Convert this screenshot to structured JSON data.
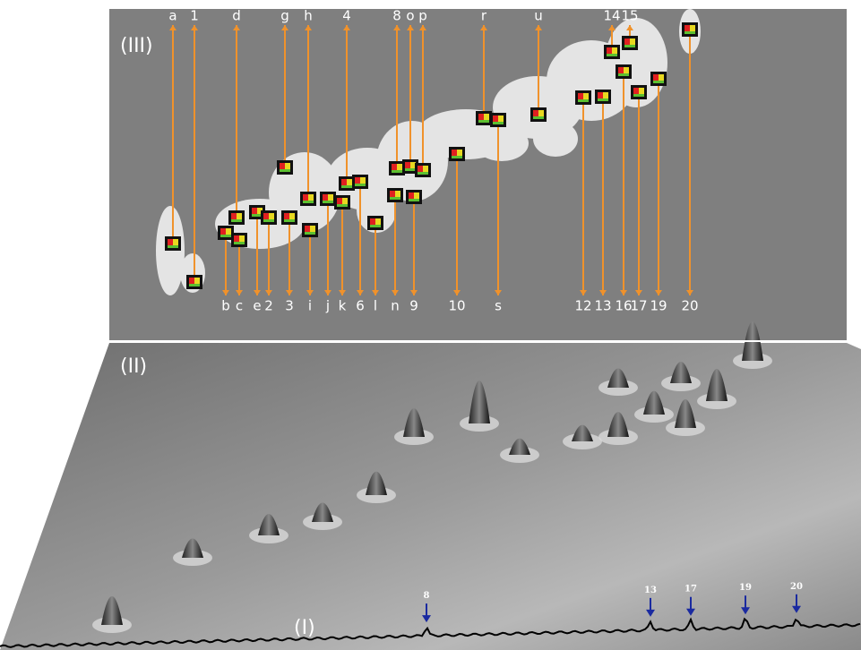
{
  "panels": {
    "top": "(III)",
    "middle": "(II)",
    "bottom": "(I)"
  },
  "top_labels": [
    "a",
    "1",
    "d",
    "g",
    "h",
    "4",
    "8",
    "o",
    "p",
    "r",
    "u",
    "14",
    "15"
  ],
  "bottom_labels": [
    "b",
    "c",
    "e",
    "2",
    "3",
    "i",
    "j",
    "k",
    "6",
    "l",
    "n",
    "9",
    "10",
    "s",
    "12",
    "13",
    "16",
    "17",
    "19",
    "20"
  ],
  "peak_labels": [
    "8",
    "13",
    "17",
    "19",
    "20"
  ]
}
